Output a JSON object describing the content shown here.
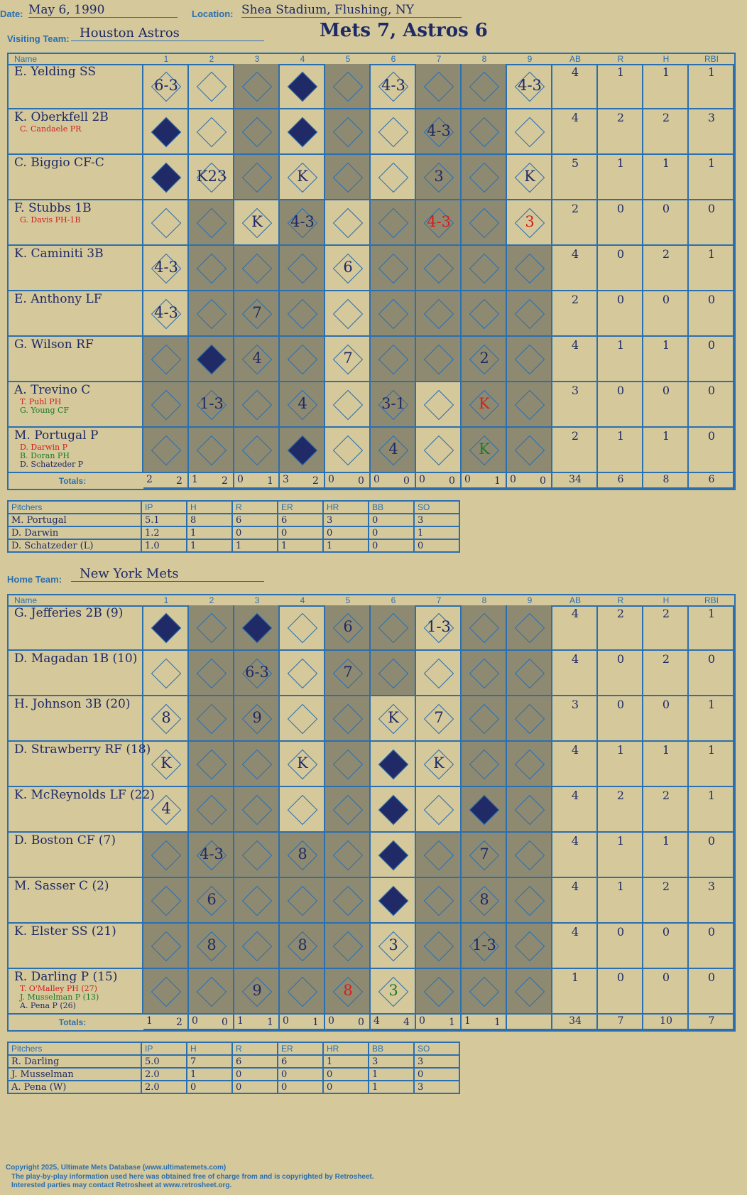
{
  "header": {
    "date_label": "Date:",
    "date": "May 6, 1990",
    "location_label": "Location:",
    "location": "Shea Stadium, Flushing, NY",
    "visiting_label": "Visiting Team:",
    "visiting": "Houston Astros",
    "home_label": "Home Team:",
    "home": "New York Mets",
    "score_title": "Mets 7, Astros 6"
  },
  "columns": {
    "name": "Name",
    "innings": [
      "1",
      "2",
      "3",
      "4",
      "5",
      "6",
      "7",
      "8",
      "9"
    ],
    "stats": [
      "AB",
      "R",
      "H",
      "RBI"
    ],
    "totals": "Totals:",
    "pitch_cols": [
      "Pitchers",
      "IP",
      "H",
      "R",
      "ER",
      "HR",
      "BB",
      "SO"
    ]
  },
  "visitors": {
    "players": [
      {
        "name": "E. Yelding SS",
        "subs": [],
        "stats": [
          "4",
          "1",
          "1",
          "1"
        ]
      },
      {
        "name": "K. Oberkfell 2B",
        "subs": [
          "C. Candaele PR"
        ],
        "stats": [
          "4",
          "2",
          "2",
          "3"
        ]
      },
      {
        "name": "C. Biggio CF-C",
        "subs": [],
        "stats": [
          "5",
          "1",
          "1",
          "1"
        ]
      },
      {
        "name": "F. Stubbs 1B",
        "subs": [
          "G. Davis PH-1B"
        ],
        "stats": [
          "2",
          "0",
          "0",
          "0"
        ]
      },
      {
        "name": "K. Caminiti 3B",
        "subs": [],
        "stats": [
          "4",
          "0",
          "2",
          "1"
        ]
      },
      {
        "name": "E. Anthony LF",
        "subs": [],
        "stats": [
          "2",
          "0",
          "0",
          "0"
        ]
      },
      {
        "name": "G. Wilson RF",
        "subs": [],
        "stats": [
          "4",
          "1",
          "1",
          "0"
        ]
      },
      {
        "name": "A. Trevino C",
        "subs": [
          "T. Puhl PH",
          "G. Young CF"
        ],
        "stats": [
          "3",
          "0",
          "0",
          "0"
        ]
      },
      {
        "name": "M. Portugal P",
        "subs": [
          "D. Darwin P",
          "B. Doran PH",
          "D. Schatzeder P"
        ],
        "stats": [
          "2",
          "1",
          "1",
          "0"
        ]
      }
    ],
    "totals": [
      "34",
      "6",
      "8",
      "6"
    ],
    "inning_totals": [
      [
        "2",
        "2"
      ],
      [
        "1",
        "2"
      ],
      [
        "0",
        "1"
      ],
      [
        "3",
        "2"
      ],
      [
        "0",
        "0"
      ],
      [
        "0",
        "0"
      ],
      [
        "0",
        "0"
      ],
      [
        "0",
        "1"
      ],
      [
        "0",
        "0"
      ]
    ],
    "pitchers": [
      [
        "M. Portugal",
        "5.1",
        "8",
        "6",
        "6",
        "3",
        "0",
        "3"
      ],
      [
        "D. Darwin",
        "1.2",
        "1",
        "0",
        "0",
        "0",
        "0",
        "1"
      ],
      [
        "D. Schatzeder (L)",
        "1.0",
        "1",
        "1",
        "1",
        "1",
        "0",
        "0"
      ]
    ]
  },
  "home": {
    "players": [
      {
        "name": "G. Jefferies 2B (9)",
        "subs": [],
        "stats": [
          "4",
          "2",
          "2",
          "1"
        ]
      },
      {
        "name": "D. Magadan 1B (10)",
        "subs": [],
        "stats": [
          "4",
          "0",
          "2",
          "0"
        ]
      },
      {
        "name": "H. Johnson 3B (20)",
        "subs": [],
        "stats": [
          "3",
          "0",
          "0",
          "1"
        ]
      },
      {
        "name": "D. Strawberry RF (18)",
        "subs": [],
        "stats": [
          "4",
          "1",
          "1",
          "1"
        ]
      },
      {
        "name": "K. McReynolds LF (22)",
        "subs": [],
        "stats": [
          "4",
          "2",
          "2",
          "1"
        ]
      },
      {
        "name": "D. Boston CF (7)",
        "subs": [],
        "stats": [
          "4",
          "1",
          "1",
          "0"
        ]
      },
      {
        "name": "M. Sasser C (2)",
        "subs": [],
        "stats": [
          "4",
          "1",
          "2",
          "3"
        ]
      },
      {
        "name": "K. Elster SS (21)",
        "subs": [],
        "stats": [
          "4",
          "0",
          "0",
          "0"
        ]
      },
      {
        "name": "R. Darling P (15)",
        "subs": [
          "T. O'Malley PH (27)",
          "J. Musselman P (13)",
          "A. Pena P (26)"
        ],
        "stats": [
          "1",
          "0",
          "0",
          "0"
        ]
      }
    ],
    "totals": [
      "34",
      "7",
      "10",
      "7"
    ],
    "inning_totals": [
      [
        "1",
        "2"
      ],
      [
        "0",
        "0"
      ],
      [
        "1",
        "1"
      ],
      [
        "0",
        "1"
      ],
      [
        "0",
        "0"
      ],
      [
        "4",
        "4"
      ],
      [
        "0",
        "1"
      ],
      [
        "1",
        "1"
      ],
      [
        "",
        ""
      ]
    ],
    "pitchers": [
      [
        "R. Darling",
        "5.0",
        "7",
        "6",
        "6",
        "1",
        "3",
        "3"
      ],
      [
        "J. Musselman",
        "2.0",
        "1",
        "0",
        "0",
        "0",
        "1",
        "0"
      ],
      [
        "A. Pena (W)",
        "2.0",
        "0",
        "0",
        "0",
        "0",
        "1",
        "3"
      ]
    ]
  },
  "footer": [
    "Copyright 2025, Ultimate Mets Database (www.ultimatemets.com)",
    "The play-by-play information used here was obtained free of charge from and is copyrighted by Retrosheet.",
    "Interested parties may contact Retrosheet at www.retrosheet.org."
  ],
  "colors": {
    "paper": "#d5c89b",
    "grid": "#2a6fb0",
    "ink": "#1e2a66",
    "shade": "#8e8a72",
    "red": "#d02020",
    "green": "#1a7a2a"
  }
}
